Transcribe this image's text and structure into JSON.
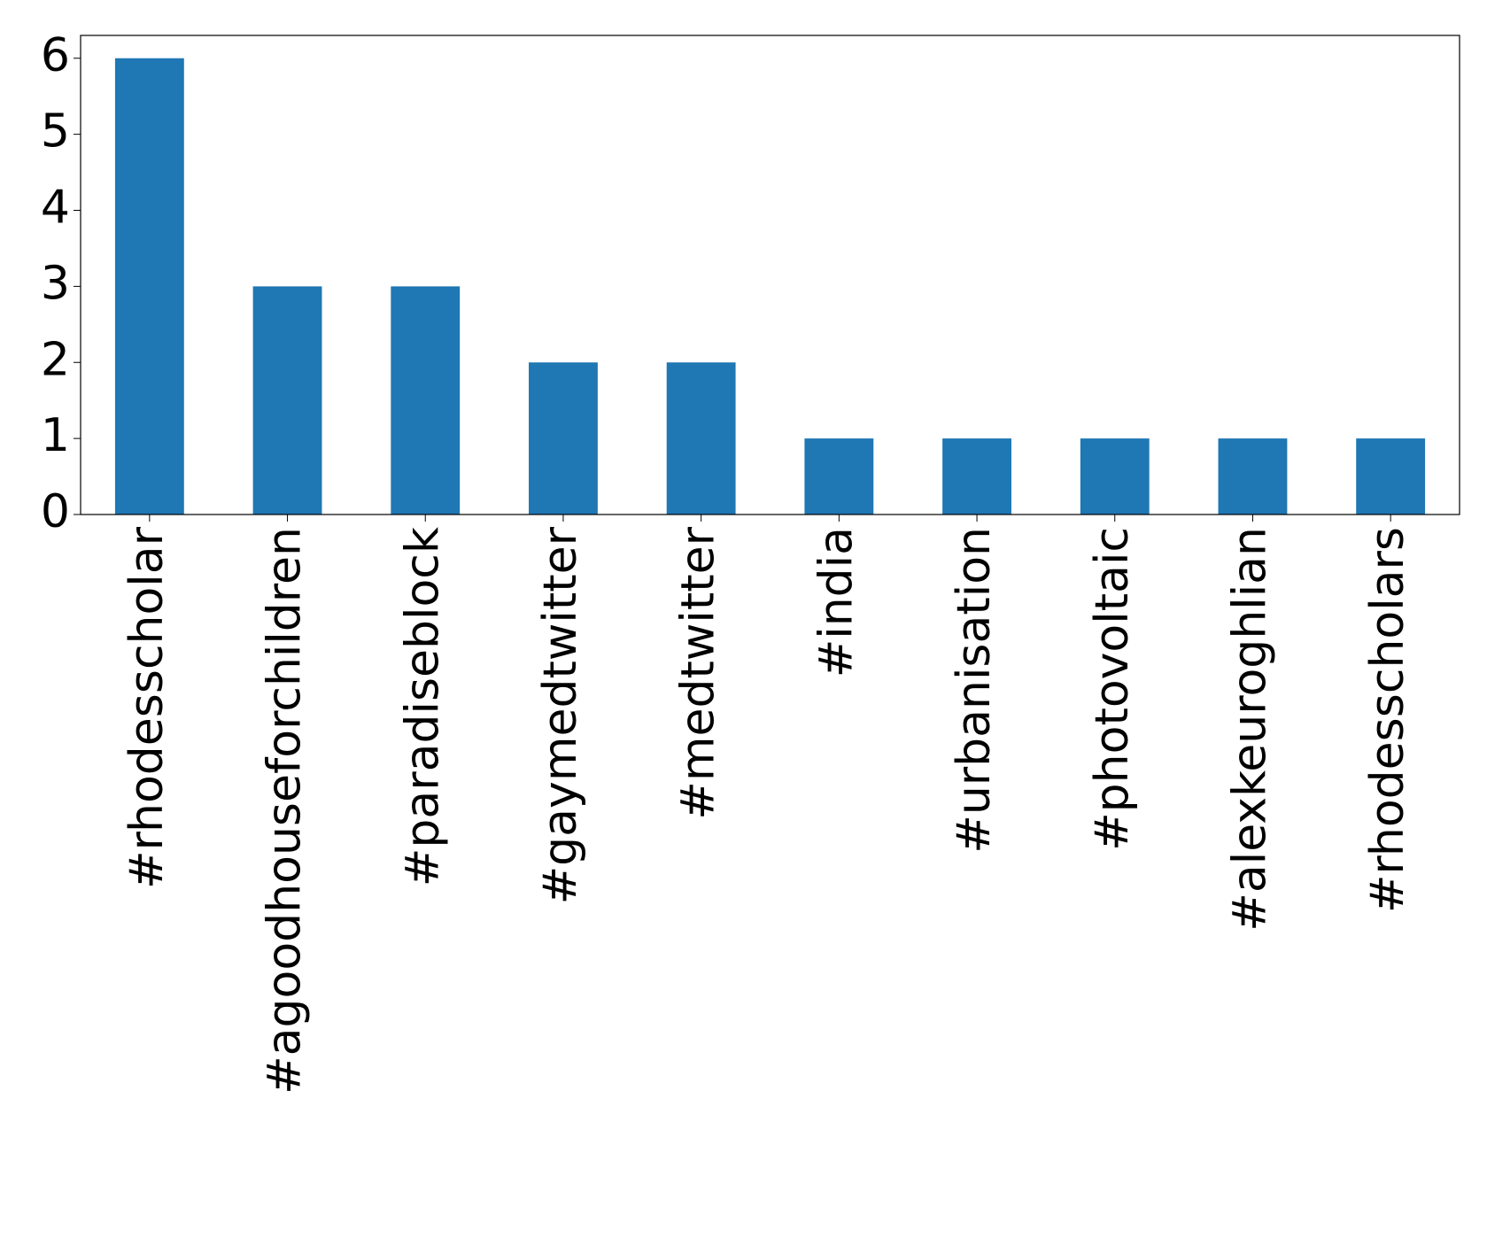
{
  "chart_data": {
    "type": "bar",
    "categories": [
      "#rhodesscholar",
      "#agoodhouseforchildren",
      "#paradiseblock",
      "#gaymedtwitter",
      "#medtwitter",
      "#india",
      "#urbanisation",
      "#photovoltaic",
      "#alexkeuroghlian",
      "#rhodesscholars"
    ],
    "values": [
      6,
      3,
      3,
      2,
      2,
      1,
      1,
      1,
      1,
      1
    ],
    "color": "#1f77b4",
    "ylim": [
      0,
      6.3
    ],
    "yticks": [
      0,
      1,
      2,
      3,
      4,
      5,
      6
    ],
    "grid": false
  }
}
